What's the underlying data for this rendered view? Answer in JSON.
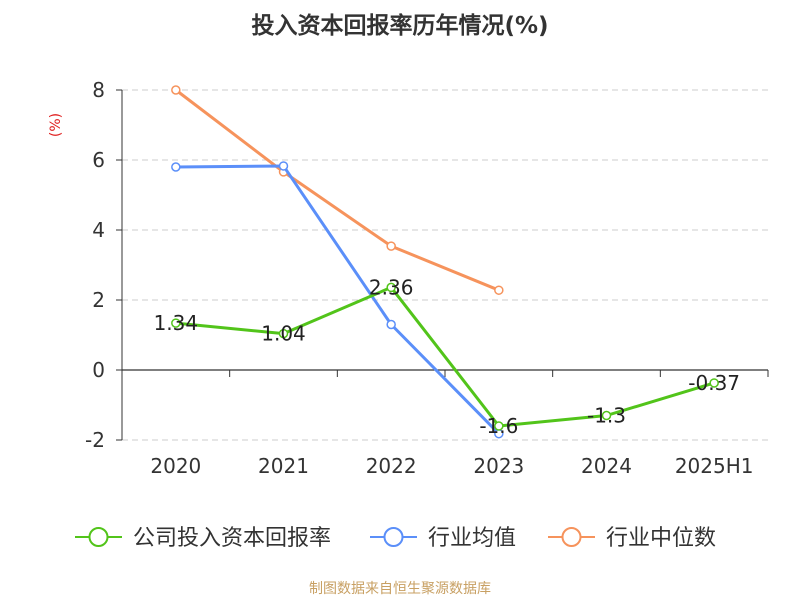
{
  "chart_data": {
    "type": "line",
    "title": "投入资本回报率历年情况(%)",
    "ylabel": "(%)",
    "xlabel": "",
    "categories": [
      "2020",
      "2021",
      "2022",
      "2023",
      "2024",
      "2025H1"
    ],
    "ylim": [
      -2,
      8
    ],
    "yticks": [
      -2,
      0,
      2,
      4,
      6,
      8
    ],
    "grid": true,
    "legend_position": "bottom",
    "series": [
      {
        "name": "公司投入资本回报率",
        "color": "#52c41a",
        "values": [
          1.34,
          1.04,
          2.36,
          -1.6,
          -1.3,
          -0.37
        ],
        "labels": [
          "1.34",
          "1.04",
          "2.36",
          "-1.6",
          "-1.3",
          "-0.37"
        ]
      },
      {
        "name": "行业均值",
        "color": "#5b8ff9",
        "values": [
          5.8,
          5.83,
          1.3,
          -1.82,
          null,
          null
        ]
      },
      {
        "name": "行业中位数",
        "color": "#f6935c",
        "values": [
          8.0,
          5.66,
          3.54,
          2.28,
          null,
          null
        ]
      }
    ]
  },
  "footer": {
    "source": "制图数据来自恒生聚源数据库"
  },
  "colors": {
    "title": "#333333",
    "axis": "#333333",
    "grid": "#cccccc",
    "ylabel": "#e02020",
    "source": "#c8a063"
  }
}
